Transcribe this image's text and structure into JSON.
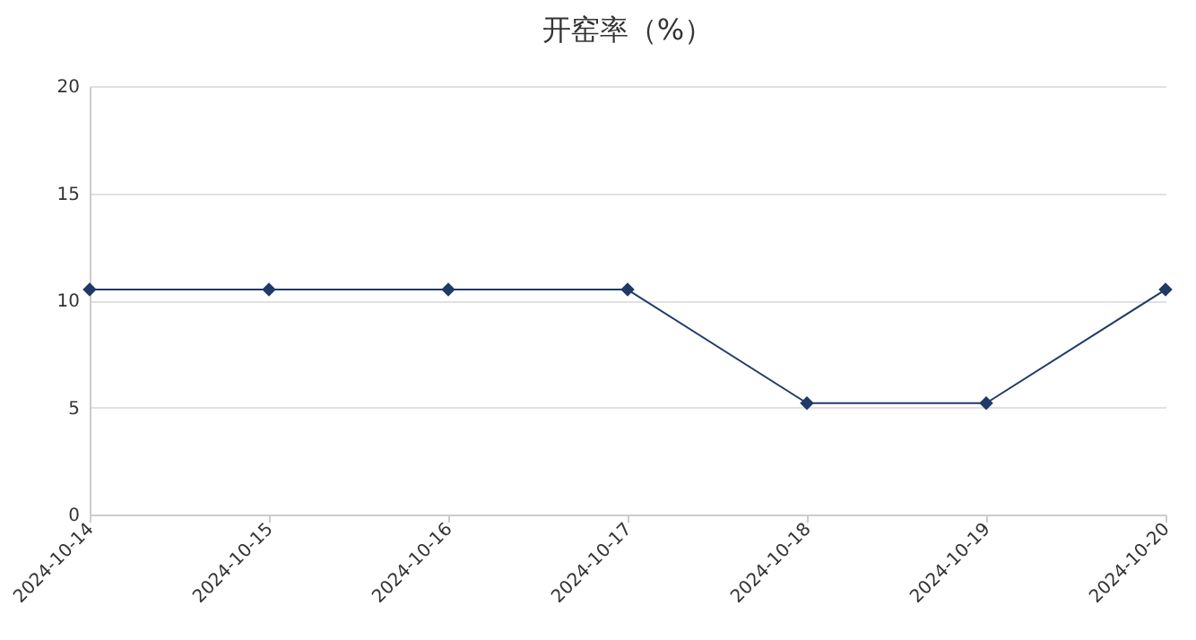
{
  "chart_data": {
    "type": "line",
    "title": "开窑率（%）",
    "categories": [
      "2024-10-14",
      "2024-10-15",
      "2024-10-16",
      "2024-10-17",
      "2024-10-18",
      "2024-10-19",
      "2024-10-20"
    ],
    "series": [
      {
        "color": "#1f3a68",
        "values": [
          10.5,
          10.5,
          10.5,
          10.5,
          5.2,
          5.2,
          10.5
        ]
      }
    ],
    "ylim": [
      0,
      20
    ],
    "yticks": [
      0,
      5,
      10,
      15,
      20
    ],
    "grid": "y",
    "marker": "diamond",
    "line_style": "solid"
  }
}
